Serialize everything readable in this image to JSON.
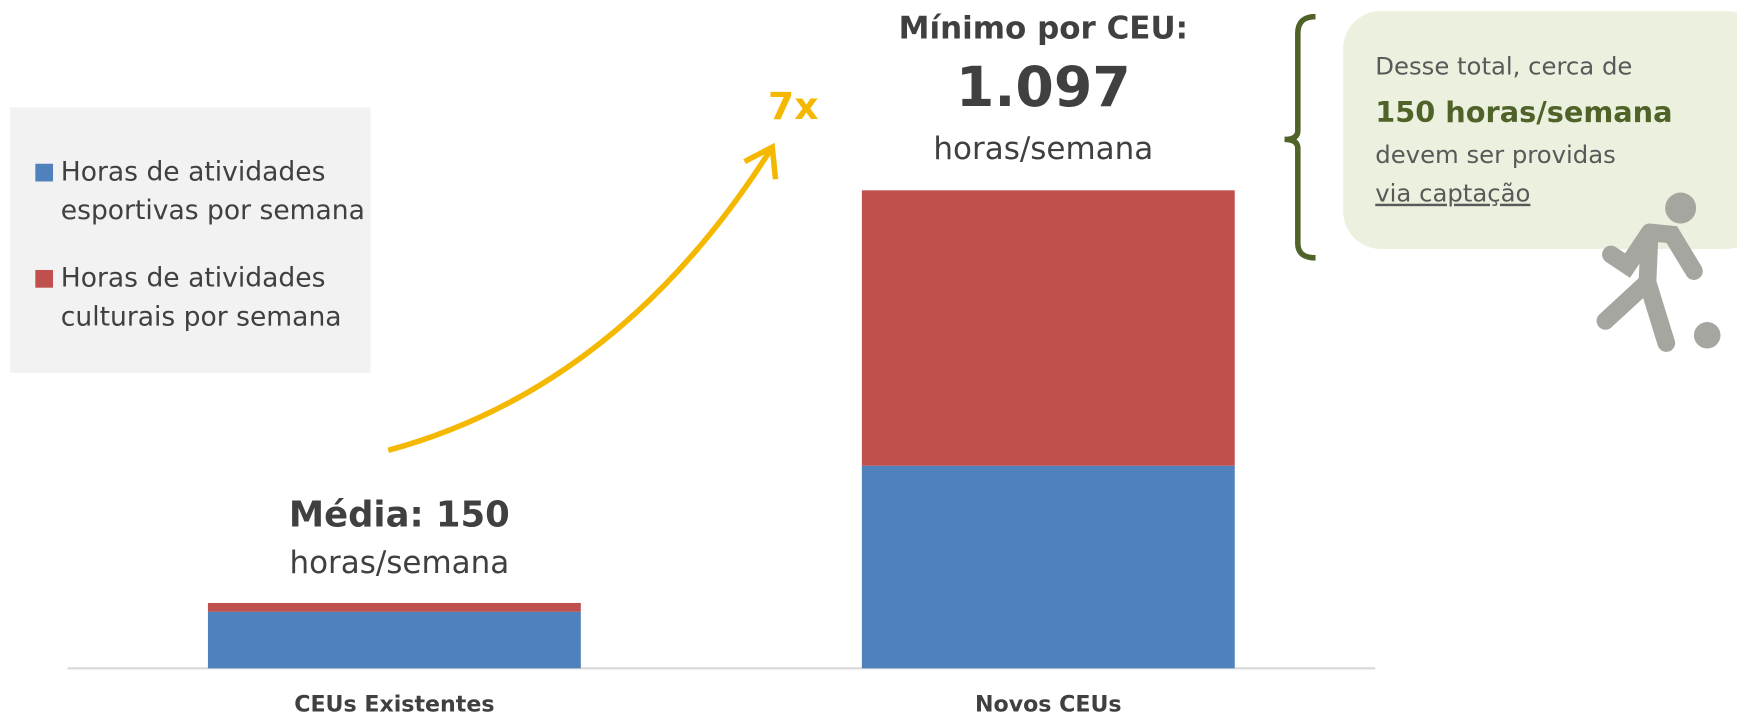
{
  "chart_data": {
    "type": "stacked_bar",
    "categories": [
      "CEUs Existentes",
      "Novos CEUs"
    ],
    "series": [
      {
        "name": "Horas de atividades esportivas por semana",
        "color": "#4f81bd",
        "values": [
          130,
          465
        ]
      },
      {
        "name": "Horas de atividades culturais por semana",
        "color": "#c0504d",
        "values": [
          20,
          632
        ]
      }
    ],
    "annotations": {
      "existing_label": "Média: 150",
      "existing_unit": "horas/semana",
      "new_label": "Mínimo por CEU:",
      "new_total": "1.097",
      "new_unit": "horas/semana",
      "growth": "7x"
    },
    "note": {
      "line1": "Desse total, cerca de",
      "line2": "150 horas/semana",
      "line3": "devem ser providas",
      "line4": "via captação"
    }
  }
}
